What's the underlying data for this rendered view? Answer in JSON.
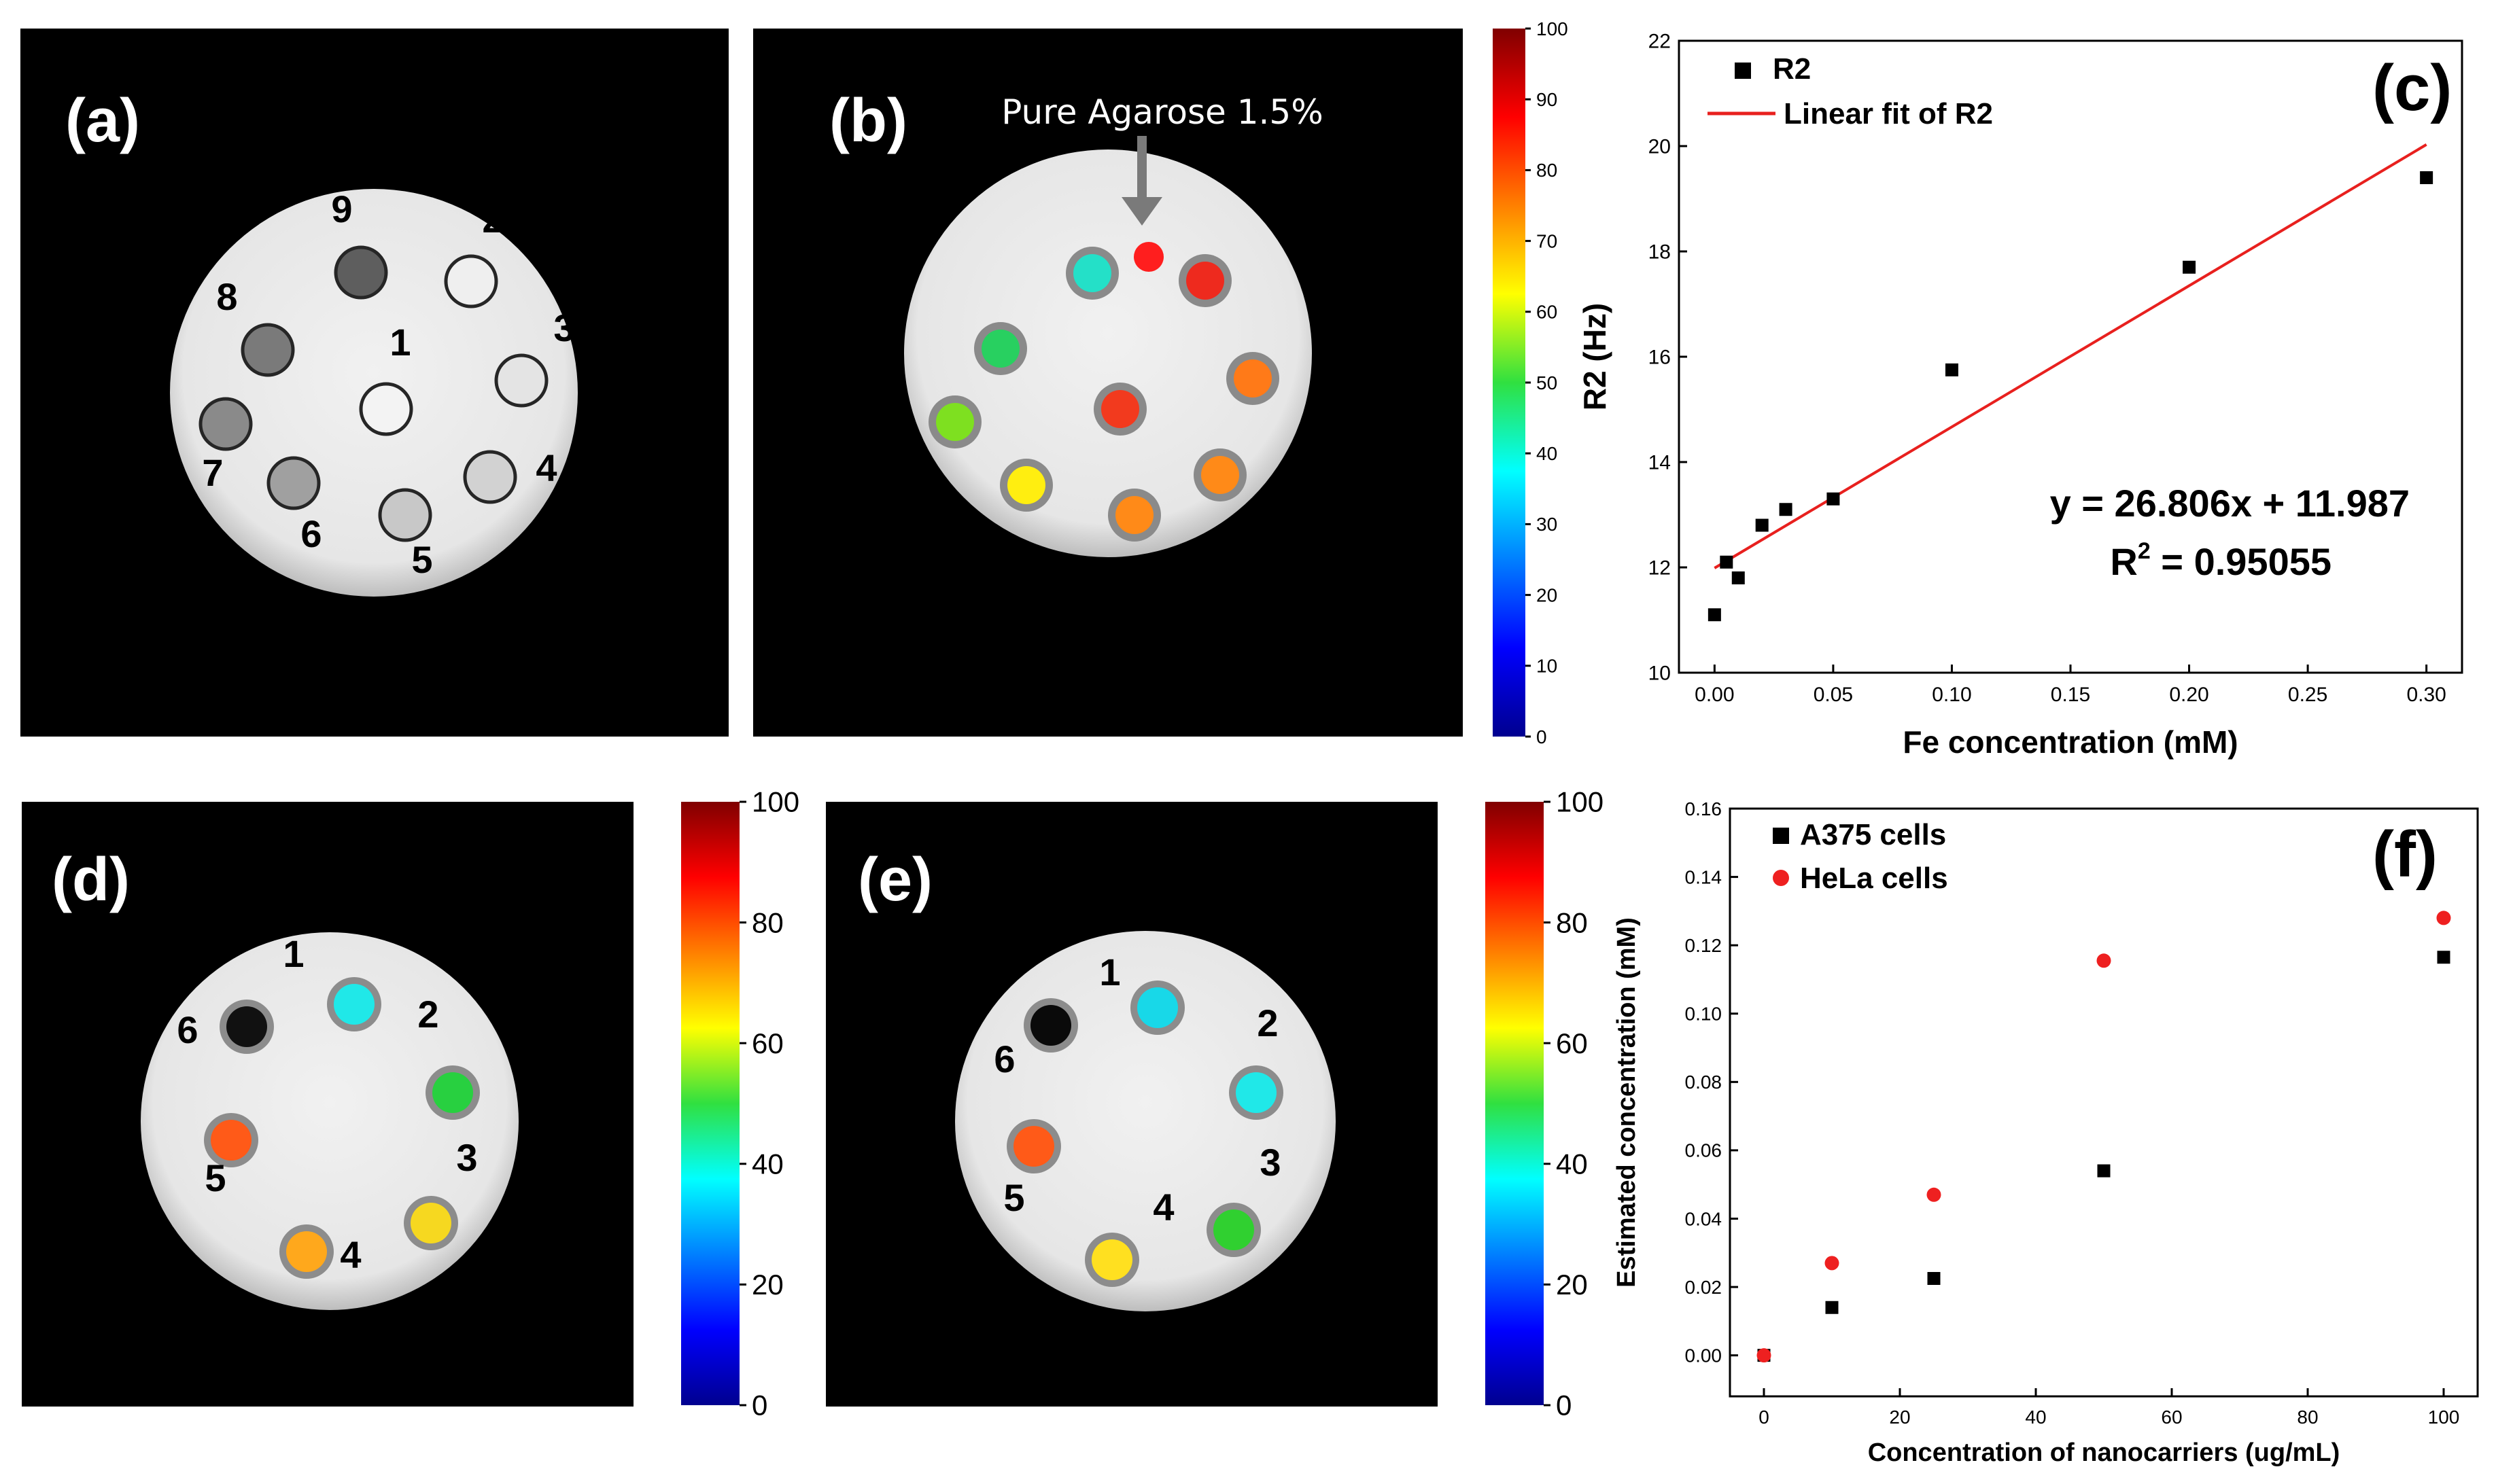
{
  "panels": {
    "a": {
      "label": "(a)",
      "tubes": [
        {
          "id": "1",
          "gray": "#f3f3f3"
        },
        {
          "id": "2",
          "gray": "#efefef"
        },
        {
          "id": "3",
          "gray": "#e4e4e4"
        },
        {
          "id": "4",
          "gray": "#d2d2d2"
        },
        {
          "id": "5",
          "gray": "#c8c8c8"
        },
        {
          "id": "6",
          "gray": "#a0a0a0"
        },
        {
          "id": "7",
          "gray": "#8a8a8a"
        },
        {
          "id": "8",
          "gray": "#7a7a7a"
        },
        {
          "id": "9",
          "gray": "#5e5e5e"
        }
      ]
    },
    "b": {
      "label": "(b)",
      "annotation": "Pure Agarose 1.5%",
      "colorbar_ticks": [
        "100",
        "90",
        "80",
        "70",
        "60",
        "50",
        "40",
        "30",
        "20",
        "10",
        "0"
      ],
      "spots": [
        {
          "color": "#ff1e1e"
        },
        {
          "color": "#24e0c8"
        },
        {
          "color": "#ee2a1e"
        },
        {
          "color": "#28d060"
        },
        {
          "color": "#ff7a18"
        },
        {
          "color": "#7ee020"
        },
        {
          "color": "#f23a1e"
        },
        {
          "color": "#ffee10"
        },
        {
          "color": "#ff8a18"
        },
        {
          "color": "#ff8a18"
        }
      ]
    },
    "d": {
      "label": "(d)",
      "colorbar_ticks": [
        "100",
        "80",
        "60",
        "40",
        "20",
        "0"
      ],
      "tubes": [
        {
          "id": "1",
          "color": "#20e8e8"
        },
        {
          "id": "2",
          "color": "#28d040"
        },
        {
          "id": "3",
          "color": "#f6d820"
        },
        {
          "id": "4",
          "color": "#ffa81c"
        },
        {
          "id": "5",
          "color": "#ff5a18"
        },
        {
          "id": "6",
          "color": "#111111"
        }
      ]
    },
    "e": {
      "label": "(e)",
      "colorbar_ticks": [
        "100",
        "80",
        "60",
        "40",
        "20",
        "0"
      ],
      "tubes": [
        {
          "id": "1",
          "color": "#18d8e8"
        },
        {
          "id": "2",
          "color": "#20e8e8"
        },
        {
          "id": "3",
          "color": "#30d030"
        },
        {
          "id": "4",
          "color": "#ffe020"
        },
        {
          "id": "5",
          "color": "#ff5a18"
        },
        {
          "id": "6",
          "color": "#0a0a0a"
        }
      ]
    }
  },
  "chart_data": [
    {
      "panel_label": "(c)",
      "type": "scatter",
      "xlabel": "Fe concentration (mM)",
      "ylabel": "R2 (Hz)",
      "xlim": [
        -0.015,
        0.315
      ],
      "ylim": [
        10,
        22
      ],
      "xticks": [
        "0.00",
        "0.05",
        "0.10",
        "0.15",
        "0.20",
        "0.25",
        "0.30"
      ],
      "yticks": [
        "10",
        "12",
        "14",
        "16",
        "18",
        "20",
        "22"
      ],
      "series": [
        {
          "name": "R2",
          "marker": "square",
          "color": "#000000",
          "x": [
            0.0,
            0.005,
            0.01,
            0.02,
            0.03,
            0.05,
            0.1,
            0.2,
            0.3
          ],
          "y": [
            11.1,
            12.1,
            11.8,
            12.8,
            13.1,
            13.3,
            15.75,
            17.7,
            19.4
          ]
        }
      ],
      "fit": {
        "name": "Linear fit of R2",
        "color": "#e8201e",
        "slope": 26.806,
        "intercept": 11.987,
        "x_range": [
          0.0,
          0.3
        ]
      },
      "annotation": {
        "equation": "y = 26.806x + 11.987",
        "r2_prefix": "R",
        "r2_sup": "2",
        "r2_value": " = 0.95055"
      }
    },
    {
      "panel_label": "(f)",
      "type": "scatter",
      "xlabel": "Concentration of nanocarriers (ug/mL)",
      "ylabel": "Estimated concentration (mM)",
      "xlim": [
        -5,
        105
      ],
      "ylim": [
        -0.012,
        0.16
      ],
      "xticks": [
        "0",
        "20",
        "40",
        "60",
        "80",
        "100"
      ],
      "yticks": [
        "0.00",
        "0.02",
        "0.04",
        "0.06",
        "0.08",
        "0.10",
        "0.12",
        "0.14",
        "0.16"
      ],
      "series": [
        {
          "name": "A375 cells",
          "marker": "square",
          "color": "#000000",
          "x": [
            0,
            10,
            25,
            50,
            100
          ],
          "y": [
            0.0,
            0.014,
            0.0225,
            0.054,
            0.1165
          ]
        },
        {
          "name": "HeLa cells",
          "marker": "circle",
          "color": "#ee2020",
          "x": [
            0,
            10,
            25,
            50,
            100
          ],
          "y": [
            0.0,
            0.027,
            0.047,
            0.1155,
            0.128
          ]
        }
      ]
    }
  ]
}
